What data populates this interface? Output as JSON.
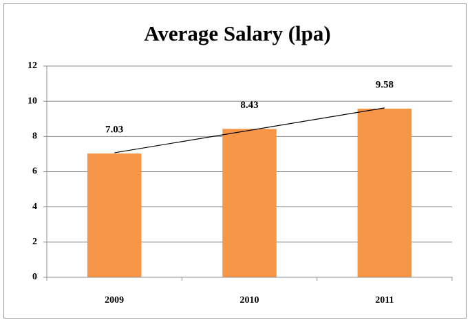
{
  "chart_data": {
    "type": "bar",
    "title": "Average Salary (lpa)",
    "categories": [
      "2009",
      "2010",
      "2011"
    ],
    "values": [
      7.03,
      8.43,
      9.58
    ],
    "color": "#f79646",
    "trendline": true,
    "ylim": [
      0,
      12
    ],
    "yticks": [
      0,
      2,
      4,
      6,
      8,
      10,
      12
    ],
    "grid": true
  }
}
